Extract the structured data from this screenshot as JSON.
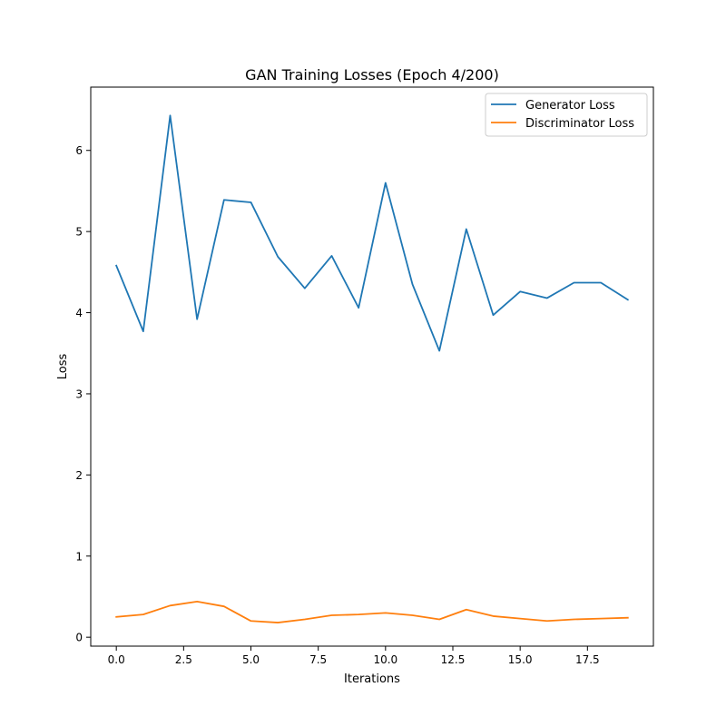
{
  "chart_data": {
    "type": "line",
    "title": "GAN Training Losses (Epoch 4/200)",
    "xlabel": "Iterations",
    "ylabel": "Loss",
    "xlim": [
      -0.95,
      19.95
    ],
    "ylim": [
      -0.11,
      6.78
    ],
    "grid": false,
    "legend_position": "top-right",
    "x": [
      0,
      1,
      2,
      3,
      4,
      5,
      6,
      7,
      8,
      9,
      10,
      11,
      12,
      13,
      14,
      15,
      16,
      17,
      18,
      19
    ],
    "x_ticks": [
      0.0,
      2.5,
      5.0,
      7.5,
      10.0,
      12.5,
      15.0,
      17.5
    ],
    "x_tick_labels": [
      "0.0",
      "2.5",
      "5.0",
      "7.5",
      "10.0",
      "12.5",
      "15.0",
      "17.5"
    ],
    "y_ticks": [
      0,
      1,
      2,
      3,
      4,
      5,
      6
    ],
    "y_tick_labels": [
      "0",
      "1",
      "2",
      "3",
      "4",
      "5",
      "6"
    ],
    "series": [
      {
        "name": "Generator Loss",
        "color": "#1f77b4",
        "values": [
          4.58,
          3.77,
          6.43,
          3.92,
          5.39,
          5.36,
          4.69,
          4.3,
          4.7,
          4.06,
          5.6,
          4.35,
          3.53,
          5.03,
          3.97,
          4.26,
          4.18,
          4.37,
          4.37,
          4.16
        ]
      },
      {
        "name": "Discriminator Loss",
        "color": "#ff7f0e",
        "values": [
          0.25,
          0.28,
          0.39,
          0.44,
          0.38,
          0.2,
          0.18,
          0.22,
          0.27,
          0.28,
          0.3,
          0.27,
          0.22,
          0.34,
          0.26,
          0.23,
          0.2,
          0.22,
          0.23,
          0.24
        ]
      }
    ]
  }
}
